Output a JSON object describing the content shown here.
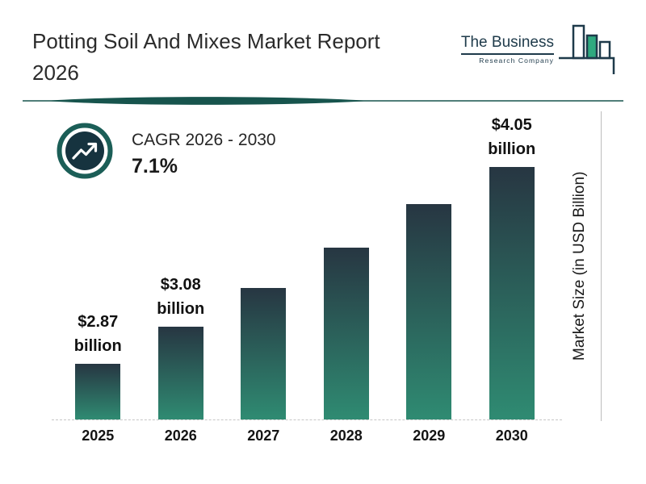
{
  "header": {
    "title_line1": "Potting Soil And Mixes Market Report",
    "title_line2": "2026",
    "logo": {
      "name": "The Business",
      "subtext": "Research Company"
    }
  },
  "cagr": {
    "label": "CAGR 2026 - 2030",
    "value": "7.1%"
  },
  "chart_data": {
    "type": "bar",
    "title": "Potting Soil And Mixes Market Report 2026",
    "categories": [
      "2025",
      "2026",
      "2027",
      "2028",
      "2029",
      "2030"
    ],
    "values": [
      2.87,
      3.08,
      3.3,
      3.53,
      3.78,
      4.05
    ],
    "bar_labels": [
      {
        "index": 0,
        "line1": "$2.87",
        "line2": "billion"
      },
      {
        "index": 1,
        "line1": "$3.08",
        "line2": "billion"
      },
      {
        "index": 5,
        "line1": "$4.05",
        "line2": "billion"
      }
    ],
    "xlabel": "",
    "ylabel": "Market Size (in USD Billion)",
    "ylim": [
      2.55,
      4.3
    ],
    "grid": false,
    "legend": false,
    "colors": {
      "bar_top": "#273642",
      "bar_bottom": "#2f8b72",
      "accent": "#17544d",
      "logo_dark": "#1e3a4a",
      "logo_green": "#2fa97f"
    }
  }
}
